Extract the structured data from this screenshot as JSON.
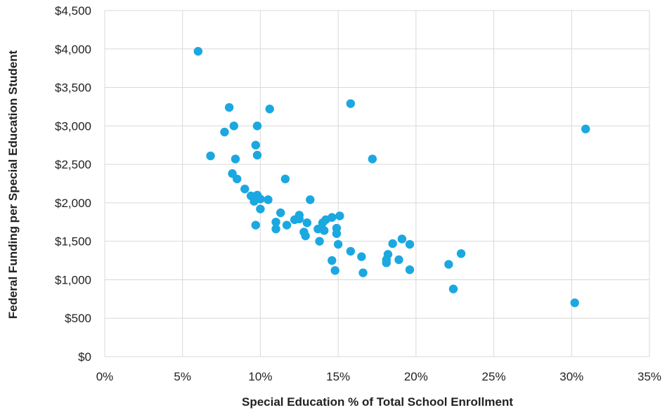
{
  "chart_data": {
    "type": "scatter",
    "xlabel": "Special Education % of Total School Enrollment",
    "ylabel": "Federal Funding per Special Education Student",
    "xlim": [
      0,
      35
    ],
    "ylim": [
      0,
      4500
    ],
    "x_ticks": [
      0,
      5,
      10,
      15,
      20,
      25,
      30,
      35
    ],
    "y_ticks": [
      0,
      500,
      1000,
      1500,
      2000,
      2500,
      3000,
      3500,
      4000,
      4500
    ],
    "x_tick_labels": [
      "0%",
      "5%",
      "10%",
      "15%",
      "20%",
      "25%",
      "30%",
      "35%"
    ],
    "y_tick_labels": [
      "$0",
      "$500",
      "$1,000",
      "$1,500",
      "$2,000",
      "$2,500",
      "$3,000",
      "$3,500",
      "$4,000",
      "$4,500"
    ],
    "grid": true,
    "marker_color": "#1ba8e0",
    "gridline_color": "#d9d9d9",
    "series": [
      {
        "points": [
          {
            "x": 6.0,
            "y": 3970
          },
          {
            "x": 6.8,
            "y": 2610
          },
          {
            "x": 7.7,
            "y": 2920
          },
          {
            "x": 8.0,
            "y": 3240
          },
          {
            "x": 8.3,
            "y": 3000
          },
          {
            "x": 8.4,
            "y": 2570
          },
          {
            "x": 8.2,
            "y": 2380
          },
          {
            "x": 8.5,
            "y": 2310
          },
          {
            "x": 9.0,
            "y": 2180
          },
          {
            "x": 9.4,
            "y": 2090
          },
          {
            "x": 9.6,
            "y": 2020
          },
          {
            "x": 9.8,
            "y": 2100
          },
          {
            "x": 10.0,
            "y": 2050
          },
          {
            "x": 10.0,
            "y": 1920
          },
          {
            "x": 9.8,
            "y": 3000
          },
          {
            "x": 9.7,
            "y": 2750
          },
          {
            "x": 9.8,
            "y": 2620
          },
          {
            "x": 9.7,
            "y": 1710
          },
          {
            "x": 10.6,
            "y": 3220
          },
          {
            "x": 10.5,
            "y": 2040
          },
          {
            "x": 11.0,
            "y": 1750
          },
          {
            "x": 11.0,
            "y": 1660
          },
          {
            "x": 11.3,
            "y": 1870
          },
          {
            "x": 11.6,
            "y": 2310
          },
          {
            "x": 11.7,
            "y": 1710
          },
          {
            "x": 12.2,
            "y": 1780
          },
          {
            "x": 12.5,
            "y": 1840
          },
          {
            "x": 12.5,
            "y": 1790
          },
          {
            "x": 12.8,
            "y": 1620
          },
          {
            "x": 12.9,
            "y": 1570
          },
          {
            "x": 13.0,
            "y": 1740
          },
          {
            "x": 13.2,
            "y": 2040
          },
          {
            "x": 13.7,
            "y": 1660
          },
          {
            "x": 13.8,
            "y": 1500
          },
          {
            "x": 14.0,
            "y": 1740
          },
          {
            "x": 14.1,
            "y": 1640
          },
          {
            "x": 14.2,
            "y": 1780
          },
          {
            "x": 14.6,
            "y": 1810
          },
          {
            "x": 14.6,
            "y": 1250
          },
          {
            "x": 14.8,
            "y": 1120
          },
          {
            "x": 14.9,
            "y": 1670
          },
          {
            "x": 14.9,
            "y": 1600
          },
          {
            "x": 15.0,
            "y": 1460
          },
          {
            "x": 15.1,
            "y": 1830
          },
          {
            "x": 15.8,
            "y": 3290
          },
          {
            "x": 15.8,
            "y": 1370
          },
          {
            "x": 16.5,
            "y": 1300
          },
          {
            "x": 16.6,
            "y": 1090
          },
          {
            "x": 17.2,
            "y": 2570
          },
          {
            "x": 18.1,
            "y": 1260
          },
          {
            "x": 18.1,
            "y": 1220
          },
          {
            "x": 18.2,
            "y": 1330
          },
          {
            "x": 18.5,
            "y": 1470
          },
          {
            "x": 18.9,
            "y": 1260
          },
          {
            "x": 19.1,
            "y": 1530
          },
          {
            "x": 19.6,
            "y": 1460
          },
          {
            "x": 19.6,
            "y": 1130
          },
          {
            "x": 22.1,
            "y": 1200
          },
          {
            "x": 22.4,
            "y": 880
          },
          {
            "x": 22.9,
            "y": 1340
          },
          {
            "x": 30.2,
            "y": 700
          },
          {
            "x": 30.9,
            "y": 2960
          }
        ]
      }
    ]
  }
}
